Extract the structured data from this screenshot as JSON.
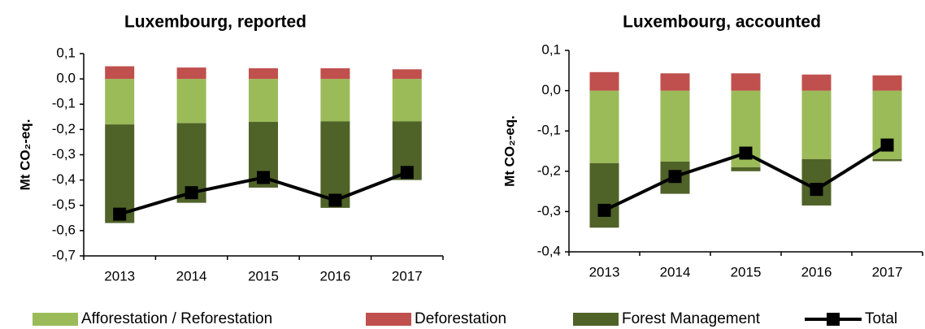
{
  "chart_data": [
    {
      "type": "stacked-bar-line",
      "title": "Luxembourg, reported",
      "y_label": "Mt CO₂-eq.",
      "categories": [
        "2013",
        "2014",
        "2015",
        "2016",
        "2017"
      ],
      "ylim": [
        -0.7,
        0.1
      ],
      "yticks": [
        {
          "value": -0.7,
          "label": "-0,7"
        },
        {
          "value": -0.6,
          "label": "-0,6"
        },
        {
          "value": -0.5,
          "label": "-0,5"
        },
        {
          "value": -0.4,
          "label": "-0,4"
        },
        {
          "value": -0.3,
          "label": "-0,3"
        },
        {
          "value": -0.2,
          "label": "-0,2"
        },
        {
          "value": -0.1,
          "label": "-0,1"
        },
        {
          "value": 0,
          "label": "0.0"
        },
        {
          "value": 0.1,
          "label": "0,1"
        }
      ],
      "series": [
        {
          "name": "Afforestation / Reforestation",
          "color": "#9bbb59",
          "kind": "bar",
          "values": [
            -0.18,
            -0.175,
            -0.17,
            -0.168,
            -0.168
          ]
        },
        {
          "name": "Deforestation",
          "color": "#c0504d",
          "kind": "bar",
          "values": [
            0.05,
            0.045,
            0.042,
            0.042,
            0.038
          ]
        },
        {
          "name": "Forest Management",
          "color": "#4f6228",
          "kind": "bar",
          "values": [
            -0.39,
            -0.315,
            -0.26,
            -0.342,
            -0.232
          ]
        },
        {
          "name": "Total",
          "color": "#000000",
          "kind": "line",
          "values": [
            -0.535,
            -0.45,
            -0.39,
            -0.48,
            -0.37
          ]
        }
      ]
    },
    {
      "type": "stacked-bar-line",
      "title": "Luxembourg, accounted",
      "y_label": "Mt CO₂-eq.",
      "categories": [
        "2013",
        "2014",
        "2015",
        "2016",
        "2017"
      ],
      "ylim": [
        -0.4,
        0.1
      ],
      "yticks": [
        {
          "value": -0.4,
          "label": "-0,4"
        },
        {
          "value": -0.3,
          "label": "-0,3"
        },
        {
          "value": -0.2,
          "label": "-0,2"
        },
        {
          "value": -0.1,
          "label": "-0,1"
        },
        {
          "value": 0,
          "label": "0,0"
        },
        {
          "value": 0.1,
          "label": "0,1"
        }
      ],
      "series": [
        {
          "name": "Afforestation / Reforestation",
          "color": "#9bbb59",
          "kind": "bar",
          "values": [
            -0.18,
            -0.176,
            -0.19,
            -0.17,
            -0.17
          ]
        },
        {
          "name": "Deforestation",
          "color": "#c0504d",
          "kind": "bar",
          "values": [
            0.046,
            0.043,
            0.043,
            0.04,
            0.038
          ]
        },
        {
          "name": "Forest Management",
          "color": "#4f6228",
          "kind": "bar",
          "values": [
            -0.16,
            -0.08,
            -0.01,
            -0.115,
            -0.005
          ]
        },
        {
          "name": "Total",
          "color": "#000000",
          "kind": "line",
          "values": [
            -0.297,
            -0.213,
            -0.155,
            -0.245,
            -0.135
          ]
        }
      ]
    }
  ]
}
